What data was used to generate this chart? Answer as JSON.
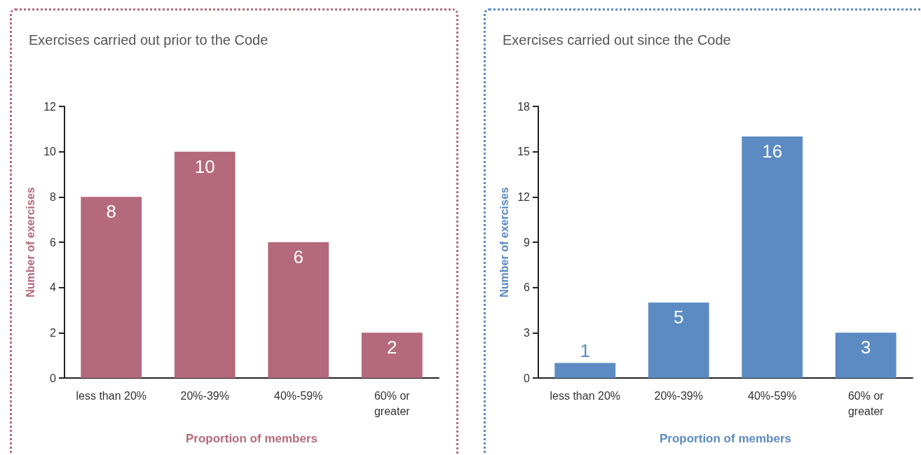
{
  "chart_data": [
    {
      "type": "bar",
      "title": "Exercises carried out prior to the Code",
      "categories": [
        "less than 20%",
        "20%-39%",
        "40%-59%",
        "60% or\ngreater"
      ],
      "xlabel": "Proportion of members",
      "ylabel": "Number of exercises",
      "values": [
        8,
        10,
        6,
        2
      ],
      "color": "#b5697c",
      "ylim": [
        0,
        12
      ],
      "yticks": [
        0,
        2,
        4,
        6,
        8,
        10,
        12
      ],
      "grid": false,
      "data_labels": true
    },
    {
      "type": "bar",
      "title": "Exercises carried out since the Code",
      "categories": [
        "less than 20%",
        "20%-39%",
        "40%-59%",
        "60% or\ngreater"
      ],
      "xlabel": "Proportion of members",
      "ylabel": "Number of exercises",
      "values": [
        1,
        5,
        16,
        3
      ],
      "color": "#5b8bc2",
      "ylim": [
        0,
        18
      ],
      "yticks": [
        0,
        3,
        6,
        9,
        12,
        15,
        18
      ],
      "grid": false,
      "data_labels": true
    }
  ]
}
